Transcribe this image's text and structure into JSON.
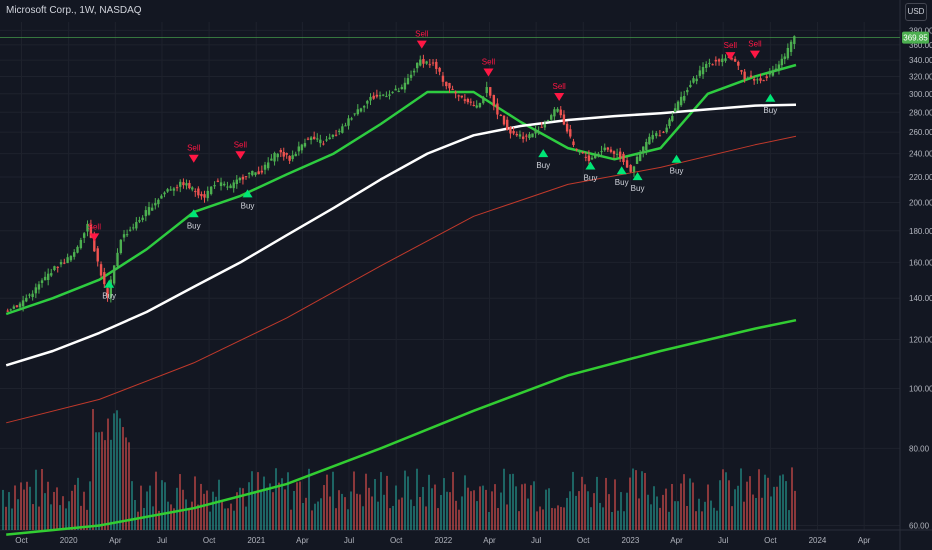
{
  "header": {
    "title": "Microsoft Corp., 1W, NASDAQ",
    "currency": "USD"
  },
  "colors": {
    "background": "#131722",
    "grid": "#1e222d",
    "up": "#26a69a",
    "candle_up": "#4caf50",
    "candle_down": "#ef5350",
    "ema_fast": "#e91e63",
    "ma_green": "#2ecc40",
    "ma_white": "#ffffff",
    "ma_red": "#c0392b",
    "volume_ma": "#32cd32",
    "price_label": "#4caf50",
    "buy": "#00e676",
    "sell": "#ff1744"
  },
  "chart_data": {
    "type": "line",
    "x_axis_labels": [
      "Oct",
      "2020",
      "Apr",
      "Jul",
      "Oct",
      "2021",
      "Apr",
      "Jul",
      "Oct",
      "2022",
      "Apr",
      "Jul",
      "Oct",
      "2023",
      "Apr",
      "Jul",
      "Oct",
      "2024",
      "Apr"
    ],
    "x_axis_label_dates": [
      "2019-10-01",
      "2020-01-01",
      "2020-04-01",
      "2020-07-01",
      "2020-10-01",
      "2021-01-01",
      "2021-04-01",
      "2021-07-01",
      "2021-10-01",
      "2022-01-01",
      "2022-04-01",
      "2022-07-01",
      "2022-10-01",
      "2023-01-01",
      "2023-04-01",
      "2023-07-01",
      "2023-10-01",
      "2024-01-01",
      "2024-04-01"
    ],
    "y_axis_labels": [
      "380.00",
      "360.00",
      "340.00",
      "320.00",
      "300.00",
      "280.00",
      "260.00",
      "240.00",
      "220.00",
      "200.00",
      "180.00",
      "160.00",
      "140.00",
      "120.00",
      "100.00",
      "80.00",
      "60.00"
    ],
    "y_scale": "log",
    "ylim": [
      59,
      392
    ],
    "last_price": "369.85",
    "price_series": {
      "name": "",
      "x": [
        "2019-09-01",
        "2019-10-01",
        "2019-11-01",
        "2019-12-01",
        "2020-01-15",
        "2020-02-10",
        "2020-03-01",
        "2020-03-20",
        "2020-04-15",
        "2020-05-15",
        "2020-06-15",
        "2020-07-15",
        "2020-08-15",
        "2020-09-01",
        "2020-09-25",
        "2020-10-15",
        "2020-11-15",
        "2020-12-15",
        "2021-01-15",
        "2021-02-15",
        "2021-03-10",
        "2021-04-15",
        "2021-05-15",
        "2021-06-15",
        "2021-07-15",
        "2021-08-15",
        "2021-09-15",
        "2021-10-15",
        "2021-11-20",
        "2021-12-15",
        "2022-01-10",
        "2022-01-28",
        "2022-02-15",
        "2022-03-10",
        "2022-03-30",
        "2022-04-20",
        "2022-05-15",
        "2022-06-15",
        "2022-07-15",
        "2022-08-15",
        "2022-09-15",
        "2022-10-15",
        "2022-11-15",
        "2022-12-15",
        "2023-01-05",
        "2023-02-10",
        "2023-03-10",
        "2023-04-01",
        "2023-05-01",
        "2023-06-01",
        "2023-07-15",
        "2023-08-15",
        "2023-09-15",
        "2023-10-15",
        "2023-11-01",
        "2023-11-20"
      ],
      "values": [
        134,
        137,
        145,
        155,
        165,
        185,
        160,
        140,
        175,
        185,
        198,
        210,
        215,
        210,
        205,
        215,
        212,
        222,
        225,
        242,
        235,
        255,
        250,
        260,
        280,
        295,
        300,
        305,
        340,
        335,
        310,
        300,
        295,
        285,
        305,
        280,
        260,
        255,
        265,
        285,
        245,
        235,
        245,
        238,
        225,
        255,
        260,
        285,
        310,
        335,
        345,
        320,
        315,
        330,
        345,
        369.85
      ]
    },
    "overlays": [
      {
        "name": "",
        "color": "#2ecc40",
        "x": [
          "2019-09-01",
          "2019-12-01",
          "2020-03-01",
          "2020-06-01",
          "2020-09-01",
          "2020-12-01",
          "2021-03-01",
          "2021-06-01",
          "2021-09-01",
          "2021-12-01",
          "2022-03-01",
          "2022-06-01",
          "2022-09-01",
          "2022-12-01",
          "2023-03-01",
          "2023-06-01",
          "2023-09-01",
          "2023-11-20"
        ],
        "values": [
          132,
          140,
          150,
          168,
          193,
          205,
          222,
          240,
          268,
          302,
          302,
          270,
          245,
          235,
          245,
          300,
          320,
          334
        ]
      },
      {
        "name": "",
        "color": "#ffffff",
        "x": [
          "2019-09-01",
          "2019-12-01",
          "2020-03-01",
          "2020-06-01",
          "2020-09-01",
          "2020-12-01",
          "2021-03-01",
          "2021-06-01",
          "2021-09-01",
          "2021-12-01",
          "2022-03-01",
          "2022-06-01",
          "2022-09-01",
          "2022-12-01",
          "2023-03-01",
          "2023-06-01",
          "2023-09-01",
          "2023-11-20"
        ],
        "values": [
          109,
          115,
          123,
          133,
          146,
          160,
          177,
          196,
          218,
          240,
          257,
          266,
          272,
          276,
          279,
          283,
          287,
          288
        ]
      },
      {
        "name": "",
        "color": "#c0392b",
        "x": [
          "2019-09-01",
          "2020-03-01",
          "2020-09-01",
          "2021-03-01",
          "2021-09-01",
          "2022-03-01",
          "2022-09-01",
          "2023-03-01",
          "2023-09-01",
          "2023-11-20"
        ],
        "values": [
          88,
          96,
          110,
          130,
          158,
          190,
          214,
          228,
          248,
          256
        ]
      },
      {
        "name": "",
        "color": "#32cd32",
        "x": [
          "2019-09-01",
          "2020-03-01",
          "2020-09-01",
          "2021-03-01",
          "2021-09-01",
          "2022-03-01",
          "2022-09-01",
          "2023-03-01",
          "2023-09-01",
          "2023-11-20"
        ],
        "values": [
          58,
          60,
          64,
          70,
          80,
          92,
          105,
          115,
          125,
          129
        ]
      }
    ],
    "signals": [
      {
        "label": "Sell",
        "type": "sell",
        "date": "2020-02-20",
        "price": 173
      },
      {
        "label": "Buy",
        "type": "buy",
        "date": "2020-03-20",
        "price": 150
      },
      {
        "label": "Sell",
        "type": "sell",
        "date": "2020-09-01",
        "price": 232
      },
      {
        "label": "Buy",
        "type": "buy",
        "date": "2020-09-01",
        "price": 195
      },
      {
        "label": "Sell",
        "type": "sell",
        "date": "2020-12-01",
        "price": 235
      },
      {
        "label": "Buy",
        "type": "buy",
        "date": "2020-12-15",
        "price": 210
      },
      {
        "label": "Sell",
        "type": "sell",
        "date": "2021-11-20",
        "price": 355
      },
      {
        "label": "Sell",
        "type": "sell",
        "date": "2022-03-30",
        "price": 320
      },
      {
        "label": "Buy",
        "type": "buy",
        "date": "2022-07-15",
        "price": 244
      },
      {
        "label": "Sell",
        "type": "sell",
        "date": "2022-08-15",
        "price": 292
      },
      {
        "label": "Buy",
        "type": "buy",
        "date": "2022-10-15",
        "price": 233
      },
      {
        "label": "Buy",
        "type": "buy",
        "date": "2022-12-15",
        "price": 229
      },
      {
        "label": "Buy",
        "type": "buy",
        "date": "2023-01-15",
        "price": 224
      },
      {
        "label": "Buy",
        "type": "buy",
        "date": "2023-04-01",
        "price": 239
      },
      {
        "label": "Sell",
        "type": "sell",
        "date": "2023-07-15",
        "price": 340
      },
      {
        "label": "Sell",
        "type": "sell",
        "date": "2023-09-01",
        "price": 342
      },
      {
        "label": "Buy",
        "type": "buy",
        "date": "2023-10-01",
        "price": 300
      }
    ],
    "grid": true,
    "legend": "none"
  }
}
